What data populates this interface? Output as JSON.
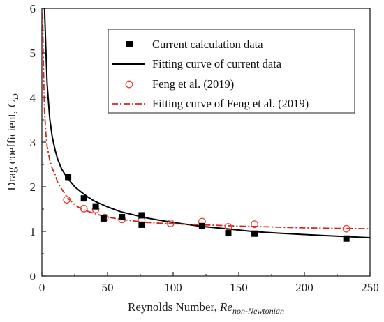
{
  "chart_data": {
    "type": "scatter",
    "xlabel": "Reynolds Number, ",
    "xlabel_var": "Re",
    "xlabel_sub": "non-Newtonian",
    "ylabel": "Drag coefficient, ",
    "ylabel_var": "C",
    "ylabel_sub": "D",
    "xlim": [
      0,
      250
    ],
    "ylim": [
      0,
      6
    ],
    "xticks": [
      0,
      50,
      100,
      150,
      200,
      250
    ],
    "yticks": [
      0,
      1,
      2,
      3,
      4,
      5,
      6
    ],
    "legend_position": "top-right",
    "series": [
      {
        "name": "Current calculation data",
        "kind": "markers",
        "marker": "square",
        "color": "#000000",
        "x": [
          20,
          32,
          41,
          47,
          61,
          76,
          76,
          122,
          142,
          162,
          232
        ],
        "y": [
          2.22,
          1.74,
          1.56,
          1.29,
          1.32,
          1.36,
          1.15,
          1.12,
          0.96,
          0.95,
          0.84
        ]
      },
      {
        "name": "Fitting curve of current data",
        "kind": "line",
        "style": "solid",
        "color": "#000000",
        "x": [
          1.5,
          2,
          3,
          4,
          6,
          8,
          10,
          12,
          15,
          18,
          20,
          25,
          30,
          35,
          40,
          50,
          60,
          70,
          80,
          100,
          120,
          140,
          160,
          180,
          200,
          220,
          250
        ],
        "y": [
          6.0,
          6.0,
          5.1,
          4.3,
          3.52,
          3.1,
          2.83,
          2.62,
          2.4,
          2.26,
          2.18,
          2.0,
          1.88,
          1.77,
          1.68,
          1.55,
          1.44,
          1.37,
          1.3,
          1.2,
          1.12,
          1.06,
          1.0,
          0.96,
          0.93,
          0.9,
          0.86
        ]
      },
      {
        "name": "Feng et al. (2019)",
        "kind": "markers",
        "marker": "open-circle",
        "color": "#e8453c",
        "x": [
          19,
          32,
          41,
          48,
          61,
          76,
          98,
          122,
          142,
          162,
          232
        ],
        "y": [
          1.71,
          1.51,
          1.49,
          1.31,
          1.27,
          1.25,
          1.18,
          1.22,
          1.1,
          1.16,
          1.06
        ]
      },
      {
        "name": "Fitting curve of Feng et al. (2019)",
        "kind": "line",
        "style": "dashdot",
        "color": "#cc2a1d",
        "x": [
          0.6,
          1,
          1.5,
          2,
          3,
          4,
          6,
          8,
          10,
          12,
          15,
          20,
          25,
          30,
          40,
          50,
          60,
          80,
          100,
          120,
          150,
          200,
          250
        ],
        "y": [
          5.9,
          5.0,
          4.3,
          3.7,
          3.2,
          2.9,
          2.6,
          2.4,
          2.28,
          2.1,
          1.95,
          1.74,
          1.6,
          1.5,
          1.4,
          1.32,
          1.27,
          1.2,
          1.17,
          1.15,
          1.12,
          1.08,
          1.06
        ]
      }
    ]
  }
}
